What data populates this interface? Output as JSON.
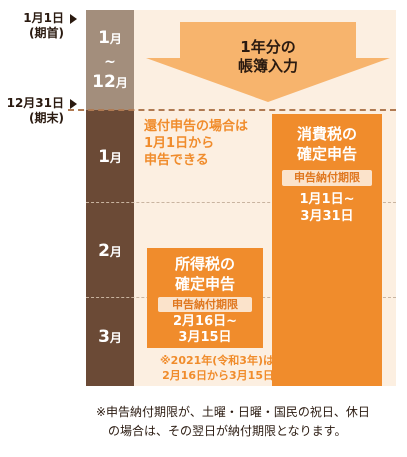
{
  "timeline": {
    "start_label_line1": "1月1日",
    "start_label_line2": "(期首)",
    "end_label_line1": "12月31日",
    "end_label_line2": "(期末)"
  },
  "months": {
    "top_start": "1",
    "top_start_unit": "月",
    "top_tilde": "~",
    "top_end": "12",
    "top_end_unit": "月",
    "m1": "1",
    "m2": "2",
    "m3": "3",
    "unit": "月"
  },
  "arrow": {
    "line1": "1年分の",
    "line2": "帳簿入力"
  },
  "blue_return_note": {
    "line1": "還付申告の場合は",
    "line2": "1月1日から",
    "line3": "申告できる"
  },
  "consumption_tax": {
    "title_line1": "消費税の",
    "title_line2": "確定申告",
    "deadline_tag": "申告納付期限",
    "deadline_line1": "1月1日~",
    "deadline_line2": "3月31日"
  },
  "income_tax": {
    "title_line1": "所得税の",
    "title_line2": "確定申告",
    "deadline_tag": "申告納付期限",
    "deadline_line1": "2月16日~",
    "deadline_line2": "3月15日"
  },
  "income_note": {
    "line1": "※2021年(令和3年)は",
    "line2": "2月16日から3月15日"
  },
  "footnote": {
    "line1": "※申告納付期限が、土曜・日曜・国民の祝日、休日",
    "line2": "の場合は、その翌日が納付期限となります。"
  }
}
